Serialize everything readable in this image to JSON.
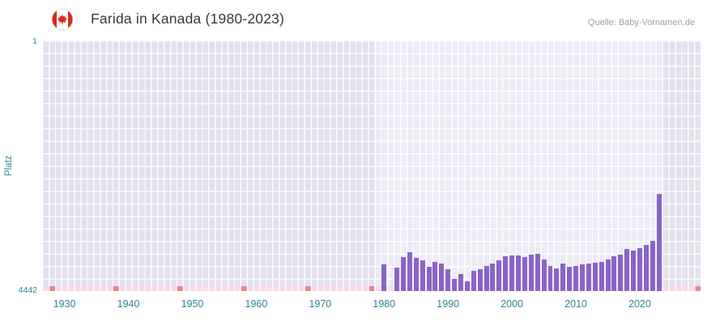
{
  "header": {
    "title": "Farida in Kanada (1980-2023)",
    "source": "Quelle: Baby-Vornamen.de",
    "flag_icon": "canada-flag-icon"
  },
  "chart_data": {
    "type": "bar",
    "title": "Farida in Kanada (1980-2023)",
    "xlabel": "",
    "ylabel": "Platz",
    "y_axis": {
      "min": 1,
      "max": 4442,
      "inverted": true,
      "top_label": "1",
      "bottom_label": "4442"
    },
    "x_range": [
      1927,
      2029
    ],
    "x_ticks": [
      1930,
      1940,
      1950,
      1960,
      1970,
      1980,
      1990,
      2000,
      2010,
      2020
    ],
    "data_region": [
      1979,
      2024
    ],
    "no_data_marker_years": [
      1928,
      1938,
      1948,
      1958,
      1968,
      1978,
      2029
    ],
    "grid": true,
    "legend_position": "none",
    "series": [
      {
        "name": "Platz",
        "points": [
          {
            "year": 1980,
            "rank": 3970
          },
          {
            "year": 1981,
            "rank": null
          },
          {
            "year": 1982,
            "rank": 4030
          },
          {
            "year": 1983,
            "rank": 3840
          },
          {
            "year": 1984,
            "rank": 3750
          },
          {
            "year": 1985,
            "rank": 3860
          },
          {
            "year": 1986,
            "rank": 3900
          },
          {
            "year": 1987,
            "rank": 4010
          },
          {
            "year": 1988,
            "rank": 3930
          },
          {
            "year": 1989,
            "rank": 3950
          },
          {
            "year": 1990,
            "rank": 4060
          },
          {
            "year": 1991,
            "rank": 4230
          },
          {
            "year": 1992,
            "rank": 4140
          },
          {
            "year": 1993,
            "rank": 4270
          },
          {
            "year": 1994,
            "rank": 4080
          },
          {
            "year": 1995,
            "rank": 4060
          },
          {
            "year": 1996,
            "rank": 4000
          },
          {
            "year": 1997,
            "rank": 3950
          },
          {
            "year": 1998,
            "rank": 3900
          },
          {
            "year": 1999,
            "rank": 3830
          },
          {
            "year": 2000,
            "rank": 3810
          },
          {
            "year": 2001,
            "rank": 3810
          },
          {
            "year": 2002,
            "rank": 3840
          },
          {
            "year": 2003,
            "rank": 3800
          },
          {
            "year": 2004,
            "rank": 3780
          },
          {
            "year": 2005,
            "rank": 3880
          },
          {
            "year": 2006,
            "rank": 4000
          },
          {
            "year": 2007,
            "rank": 4040
          },
          {
            "year": 2008,
            "rank": 3950
          },
          {
            "year": 2009,
            "rank": 4010
          },
          {
            "year": 2010,
            "rank": 4000
          },
          {
            "year": 2011,
            "rank": 3970
          },
          {
            "year": 2012,
            "rank": 3950
          },
          {
            "year": 2013,
            "rank": 3940
          },
          {
            "year": 2014,
            "rank": 3930
          },
          {
            "year": 2015,
            "rank": 3880
          },
          {
            "year": 2016,
            "rank": 3830
          },
          {
            "year": 2017,
            "rank": 3800
          },
          {
            "year": 2018,
            "rank": 3700
          },
          {
            "year": 2019,
            "rank": 3730
          },
          {
            "year": 2020,
            "rank": 3680
          },
          {
            "year": 2021,
            "rank": 3620
          },
          {
            "year": 2022,
            "rank": 3560
          },
          {
            "year": 2023,
            "rank": 2720
          }
        ]
      }
    ],
    "colors": {
      "bar": "#8a63c8",
      "plot_bg": "#e4e1ef",
      "plot_bg_highlight": "#edebf6",
      "no_data_strip": "#fadbe4",
      "no_data_marker": "#ee7f97",
      "axis_text": "#2e8599",
      "title_text": "#333b42",
      "source_text": "#9aa0a6",
      "grid_line": "#ffffff"
    }
  }
}
